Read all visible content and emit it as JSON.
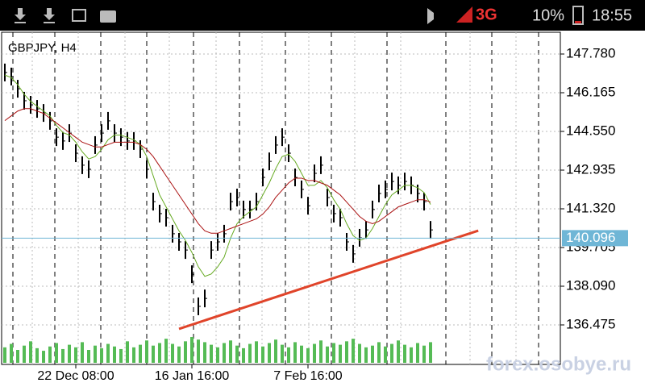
{
  "status_bar": {
    "network": "3G",
    "battery": "10%",
    "time": "18:55"
  },
  "watermark": "forex.osobye.ru",
  "chart_data": {
    "type": "bar",
    "title": "GBPJPY, H4",
    "categories": [
      null,
      null,
      null,
      null,
      null,
      null,
      null,
      null,
      null,
      null,
      null,
      "22 Dec 08:00",
      null,
      null,
      null,
      null,
      null,
      null,
      null,
      null,
      null,
      null,
      null,
      null,
      null,
      null,
      null,
      null,
      null,
      "16 Jan 16:00",
      null,
      null,
      null,
      null,
      null,
      null,
      null,
      null,
      null,
      null,
      null,
      null,
      null,
      null,
      null,
      null,
      null,
      "7 Feb 16:00",
      null,
      null,
      null,
      null,
      null,
      null,
      null,
      null,
      null,
      null,
      null,
      null,
      null,
      null,
      null,
      null,
      null,
      null,
      null
    ],
    "series": [
      {
        "name": "GBPJPY",
        "color": "#000000",
        "values": [
          147.01,
          146.84,
          146.33,
          145.83,
          145.66,
          145.49,
          145.32,
          144.99,
          144.31,
          144.15,
          144.48,
          143.64,
          143.14,
          142.97,
          143.98,
          144.48,
          144.99,
          144.48,
          144.31,
          144.15,
          144.15,
          143.81,
          142.97,
          141.62,
          141.12,
          140.95,
          140.28,
          139.94,
          139.6,
          138.59,
          137.25,
          137.58,
          139.6,
          139.94,
          140.28,
          141.62,
          141.79,
          141.29,
          141.29,
          141.62,
          142.63,
          143.3,
          143.98,
          144.31,
          143.64,
          142.63,
          142.13,
          141.45,
          142.8,
          143.14,
          141.79,
          141.12,
          140.95,
          139.94,
          139.44,
          140.11,
          140.44,
          141.29,
          141.96,
          142.13,
          142.46,
          142.3,
          142.46,
          142.3,
          141.96,
          141.62,
          140.44
        ]
      },
      {
        "color": "#66aa22",
        "values": [
          146.9,
          146.8,
          146.5,
          146.1,
          145.8,
          145.6,
          145.4,
          145.2,
          144.8,
          144.5,
          144.4,
          144.1,
          143.7,
          143.4,
          143.5,
          143.8,
          144.2,
          144.4,
          144.4,
          144.3,
          144.2,
          144.0,
          143.5,
          142.7,
          141.9,
          141.4,
          140.9,
          140.4,
          140.0,
          139.5,
          138.9,
          138.5,
          138.6,
          138.9,
          139.3,
          140.1,
          140.7,
          141.0,
          141.2,
          141.4,
          141.9,
          142.4,
          143.0,
          143.5,
          143.6,
          143.3,
          142.8,
          142.3,
          142.3,
          142.5,
          142.2,
          141.7,
          141.3,
          140.7,
          140.2,
          140.0,
          140.1,
          140.5,
          141.0,
          141.5,
          141.9,
          142.1,
          142.3,
          142.3,
          142.2,
          142.0,
          141.5
        ]
      },
      {
        "color": "#aa1111",
        "values": [
          145.0,
          145.2,
          145.4,
          145.5,
          145.5,
          145.4,
          145.3,
          145.1,
          144.9,
          144.7,
          144.5,
          144.3,
          144.1,
          144.0,
          143.9,
          143.9,
          144.0,
          144.1,
          144.1,
          144.1,
          144.1,
          144.0,
          143.8,
          143.5,
          143.1,
          142.7,
          142.3,
          141.9,
          141.5,
          141.1,
          140.7,
          140.4,
          140.3,
          140.3,
          140.4,
          140.5,
          140.6,
          140.7,
          140.8,
          140.9,
          141.1,
          141.4,
          141.8,
          142.1,
          142.4,
          142.6,
          142.6,
          142.5,
          142.5,
          142.4,
          142.3,
          142.1,
          141.9,
          141.6,
          141.3,
          141.0,
          140.8,
          140.7,
          140.8,
          141.0,
          141.2,
          141.4,
          141.5,
          141.6,
          141.7,
          141.7,
          141.6
        ]
      }
    ],
    "volume": {
      "color": "#55bb55",
      "values": [
        18,
        22,
        15,
        20,
        25,
        17,
        14,
        19,
        23,
        16,
        21,
        18,
        24,
        15,
        20,
        17,
        22,
        19,
        16,
        25,
        18,
        21,
        26,
        20,
        23,
        28,
        22,
        19,
        25,
        30,
        27,
        24,
        21,
        18,
        23,
        26,
        20,
        17,
        22,
        25,
        19,
        23,
        27,
        21,
        18,
        24,
        20,
        17,
        22,
        26,
        19,
        23,
        21,
        25,
        28,
        22,
        18,
        20,
        24,
        19,
        22,
        26,
        21,
        18,
        23,
        20,
        24
      ]
    },
    "trendline": {
      "color": "#e0442a",
      "x": [
        27,
        73.4
      ],
      "y": [
        136.31,
        140.41
      ]
    },
    "current_price": {
      "value": 140.096,
      "color": "#6fb6d6"
    },
    "ylim": [
      134.826,
      148.688
    ],
    "yticks": [
      {
        "value": 136.475,
        "label": "136.475"
      },
      {
        "value": 138.09,
        "label": "138.090"
      },
      {
        "value": 139.705,
        "label": "139.705"
      },
      {
        "value": 141.32,
        "label": "141.320"
      },
      {
        "value": 142.935,
        "label": "142.935"
      },
      {
        "value": 144.55,
        "label": "144.550"
      },
      {
        "value": 146.165,
        "label": "146.165"
      },
      {
        "value": 147.78,
        "label": "147.780"
      }
    ],
    "grid": true
  }
}
